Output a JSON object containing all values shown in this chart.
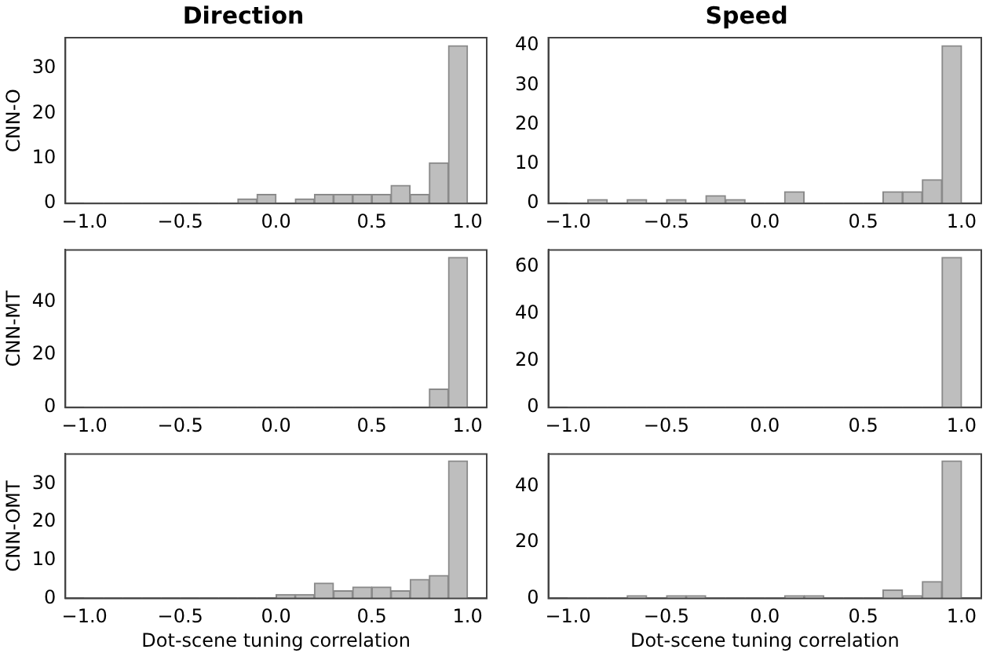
{
  "chart_data": [
    {
      "type": "histogram",
      "title": "Direction",
      "ylabel": "CNN-O",
      "bins": [
        -1,
        -0.9,
        -0.8,
        -0.7,
        -0.6,
        -0.5,
        -0.4,
        -0.3,
        -0.2,
        -0.1,
        0,
        0.1,
        0.2,
        0.3,
        0.4,
        0.5,
        0.6,
        0.7,
        0.8,
        0.9,
        1
      ],
      "values": [
        0,
        0,
        0,
        0,
        0,
        0,
        0,
        0,
        1,
        2,
        0,
        1,
        2,
        2,
        2,
        2,
        4,
        2,
        9,
        35
      ],
      "color": "#bebebe",
      "xlim": [
        -1.1,
        1.1
      ],
      "xticks": [
        {
          "value": -1,
          "label": "−1.0"
        },
        {
          "value": -0.5,
          "label": "−0.5"
        },
        {
          "value": 0,
          "label": "0.0"
        },
        {
          "value": 0.5,
          "label": "0.5"
        },
        {
          "value": 1,
          "label": "1.0"
        }
      ],
      "ylim": [
        0,
        36.75
      ],
      "yticks": [
        0,
        10,
        20,
        30
      ],
      "grid": false
    },
    {
      "type": "histogram",
      "title": "Speed",
      "bins": [
        -1,
        -0.9,
        -0.8,
        -0.7,
        -0.6,
        -0.5,
        -0.4,
        -0.3,
        -0.2,
        -0.1,
        0,
        0.1,
        0.2,
        0.3,
        0.4,
        0.5,
        0.6,
        0.7,
        0.8,
        0.9,
        1
      ],
      "values": [
        0,
        1,
        0,
        1,
        0,
        1,
        0,
        2,
        1,
        0,
        0,
        3,
        0,
        0,
        0,
        0,
        3,
        3,
        6,
        40
      ],
      "color": "#bebebe",
      "xlim": [
        -1.1,
        1.1
      ],
      "xticks": [
        {
          "value": -1,
          "label": "−1.0"
        },
        {
          "value": -0.5,
          "label": "−0.5"
        },
        {
          "value": 0,
          "label": "0.0"
        },
        {
          "value": 0.5,
          "label": "0.5"
        },
        {
          "value": 1,
          "label": "1.0"
        }
      ],
      "ylim": [
        0,
        42
      ],
      "yticks": [
        0,
        10,
        20,
        30,
        40
      ],
      "grid": false
    },
    {
      "type": "histogram",
      "ylabel": "CNN-MT",
      "bins": [
        -1,
        -0.9,
        -0.8,
        -0.7,
        -0.6,
        -0.5,
        -0.4,
        -0.3,
        -0.2,
        -0.1,
        0,
        0.1,
        0.2,
        0.3,
        0.4,
        0.5,
        0.6,
        0.7,
        0.8,
        0.9,
        1
      ],
      "values": [
        0,
        0,
        0,
        0,
        0,
        0,
        0,
        0,
        0,
        0,
        0,
        0,
        0,
        0,
        0,
        0,
        0,
        0,
        7,
        57
      ],
      "color": "#bebebe",
      "xlim": [
        -1.1,
        1.1
      ],
      "xticks": [
        {
          "value": -1,
          "label": "−1.0"
        },
        {
          "value": -0.5,
          "label": "−0.5"
        },
        {
          "value": 0,
          "label": "0.0"
        },
        {
          "value": 0.5,
          "label": "0.5"
        },
        {
          "value": 1,
          "label": "1.0"
        }
      ],
      "ylim": [
        0,
        59.85
      ],
      "yticks": [
        0,
        20,
        40
      ],
      "grid": false
    },
    {
      "type": "histogram",
      "bins": [
        -1,
        -0.9,
        -0.8,
        -0.7,
        -0.6,
        -0.5,
        -0.4,
        -0.3,
        -0.2,
        -0.1,
        0,
        0.1,
        0.2,
        0.3,
        0.4,
        0.5,
        0.6,
        0.7,
        0.8,
        0.9,
        1
      ],
      "values": [
        0,
        0,
        0,
        0,
        0,
        0,
        0,
        0,
        0,
        0,
        0,
        0,
        0,
        0,
        0,
        0,
        0,
        0,
        0,
        64
      ],
      "color": "#bebebe",
      "xlim": [
        -1.1,
        1.1
      ],
      "xticks": [
        {
          "value": -1,
          "label": "−1.0"
        },
        {
          "value": -0.5,
          "label": "−0.5"
        },
        {
          "value": 0,
          "label": "0.0"
        },
        {
          "value": 0.5,
          "label": "0.5"
        },
        {
          "value": 1,
          "label": "1.0"
        }
      ],
      "ylim": [
        0,
        67.2
      ],
      "yticks": [
        0,
        20,
        40,
        60
      ],
      "grid": false
    },
    {
      "type": "histogram",
      "ylabel": "CNN-OMT",
      "xlabel": "Dot-scene tuning correlation",
      "bins": [
        -1,
        -0.9,
        -0.8,
        -0.7,
        -0.6,
        -0.5,
        -0.4,
        -0.3,
        -0.2,
        -0.1,
        0,
        0.1,
        0.2,
        0.3,
        0.4,
        0.5,
        0.6,
        0.7,
        0.8,
        0.9,
        1
      ],
      "values": [
        0,
        0,
        0,
        0,
        0,
        0,
        0,
        0,
        0,
        0,
        1,
        1,
        4,
        2,
        3,
        3,
        2,
        5,
        6,
        36
      ],
      "color": "#bebebe",
      "xlim": [
        -1.1,
        1.1
      ],
      "xticks": [
        {
          "value": -1,
          "label": "−1.0"
        },
        {
          "value": -0.5,
          "label": "−0.5"
        },
        {
          "value": 0,
          "label": "0.0"
        },
        {
          "value": 0.5,
          "label": "0.5"
        },
        {
          "value": 1,
          "label": "1.0"
        }
      ],
      "ylim": [
        0,
        37.8
      ],
      "yticks": [
        0,
        10,
        20,
        30
      ],
      "grid": false
    },
    {
      "type": "histogram",
      "xlabel": "Dot-scene tuning correlation",
      "bins": [
        -1,
        -0.9,
        -0.8,
        -0.7,
        -0.6,
        -0.5,
        -0.4,
        -0.3,
        -0.2,
        -0.1,
        0,
        0.1,
        0.2,
        0.3,
        0.4,
        0.5,
        0.6,
        0.7,
        0.8,
        0.9,
        1
      ],
      "values": [
        0,
        0,
        0,
        1,
        0,
        1,
        1,
        0,
        0,
        0,
        0,
        1,
        1,
        0,
        0,
        0,
        3,
        1,
        6,
        49
      ],
      "color": "#bebebe",
      "xlim": [
        -1.1,
        1.1
      ],
      "xticks": [
        {
          "value": -1,
          "label": "−1.0"
        },
        {
          "value": -0.5,
          "label": "−0.5"
        },
        {
          "value": 0,
          "label": "0.0"
        },
        {
          "value": 0.5,
          "label": "0.5"
        },
        {
          "value": 1,
          "label": "1.0"
        }
      ],
      "ylim": [
        0,
        51.45
      ],
      "yticks": [
        0,
        20,
        40
      ],
      "grid": false
    }
  ]
}
